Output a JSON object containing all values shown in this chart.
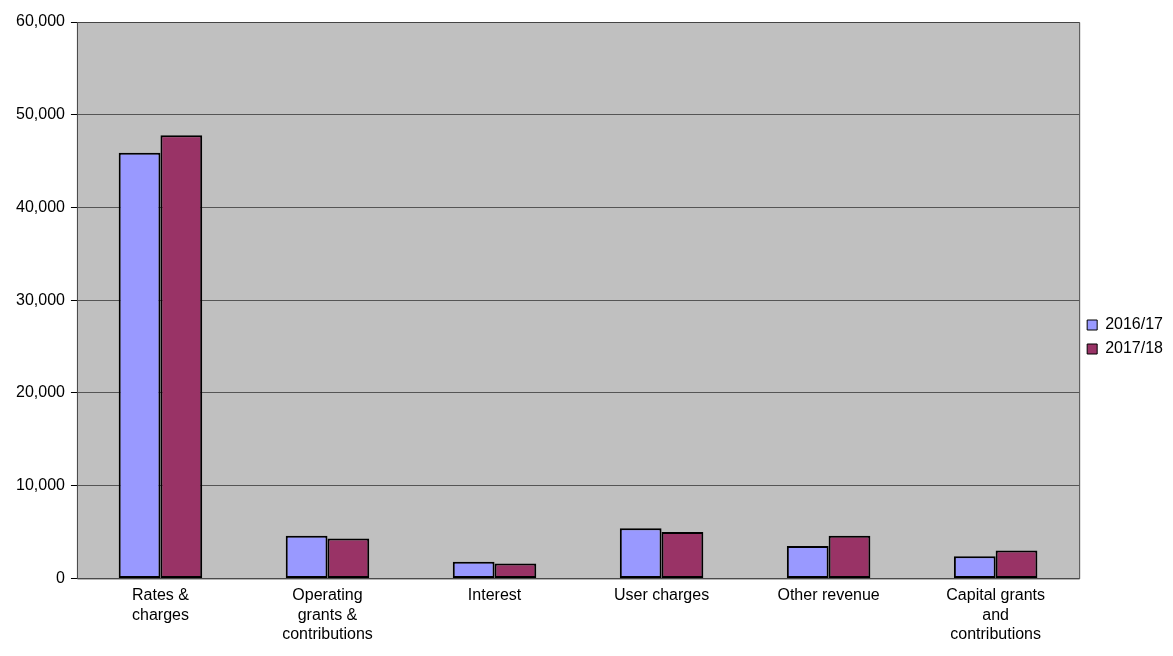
{
  "chart_data": {
    "type": "bar",
    "categories": [
      "Rates & charges",
      "Operating grants & contributions",
      "Interest",
      "User charges",
      "Other revenue",
      "Capital grants and contributions"
    ],
    "series": [
      {
        "name": "2016/17",
        "color": "#9999ff",
        "values": [
          45900,
          4600,
          1800,
          5400,
          3500,
          2400
        ]
      },
      {
        "name": "2017/18",
        "color": "#993366",
        "values": [
          47800,
          4300,
          1600,
          5000,
          4600,
          3000
        ]
      }
    ],
    "ylim": [
      0,
      60000
    ],
    "yticks": [
      0,
      {
        "value": 10000,
        "label": "10,000"
      },
      {
        "value": 20000,
        "label": "20,000"
      },
      {
        "value": 30000,
        "label": "30,000"
      },
      {
        "value": 40000,
        "label": "40,000"
      },
      {
        "value": 50000,
        "label": "50,000"
      },
      {
        "value": 60000,
        "label": "60,000"
      }
    ],
    "grid": "y",
    "legend": "right"
  }
}
